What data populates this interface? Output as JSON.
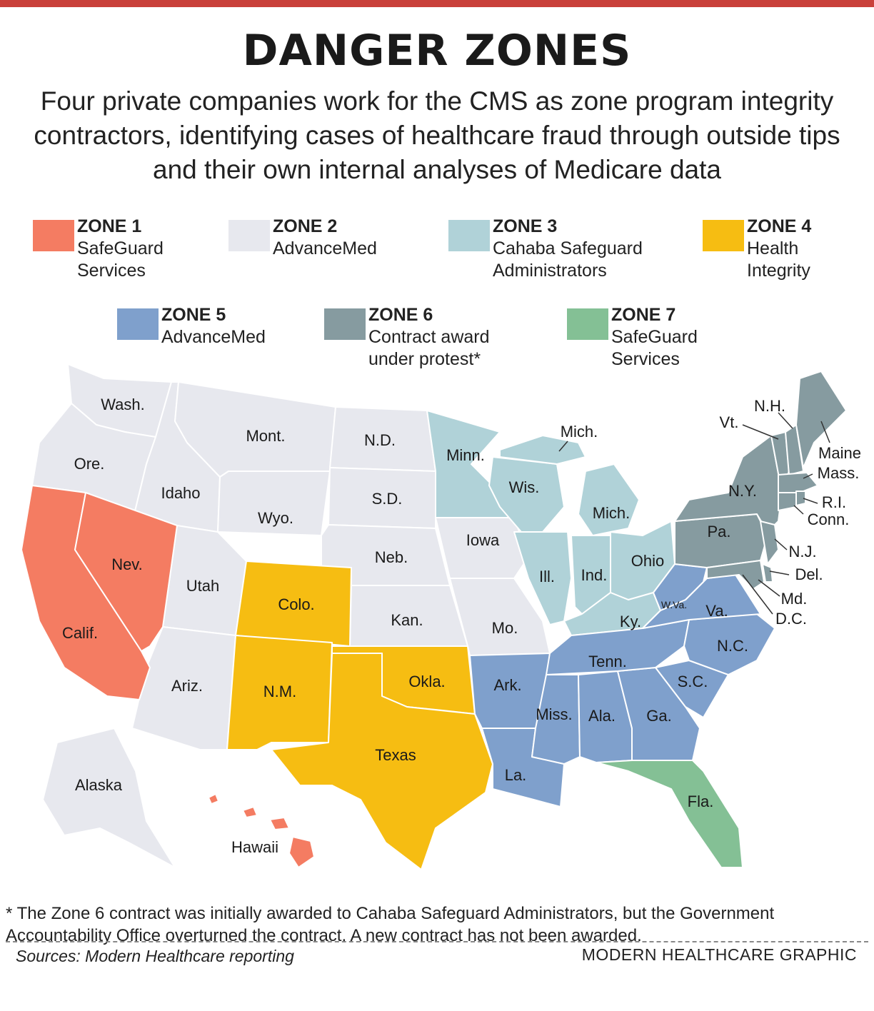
{
  "title": "DANGER ZONES",
  "subtitle": "Four private companies work for the CMS as zone program integrity contractors, identifying cases of healthcare fraud through outside tips and their own internal analyses of Medicare data",
  "legend": [
    {
      "name": "ZONE 1",
      "desc": "SafeGuard\nServices",
      "color": "#f47c62"
    },
    {
      "name": "ZONE 2",
      "desc": "AdvanceMed",
      "color": "#e7e8ee"
    },
    {
      "name": "ZONE 3",
      "desc": "Cahaba Safeguard\nAdministrators",
      "color": "#b0d2d8"
    },
    {
      "name": "ZONE 4",
      "desc": "Health\nIntegrity",
      "color": "#f6bd12"
    },
    {
      "name": "ZONE 5",
      "desc": "AdvanceMed",
      "color": "#7fa0cc"
    },
    {
      "name": "ZONE 6",
      "desc": "Contract award\nunder protest*",
      "color": "#869ba0"
    },
    {
      "name": "ZONE 7",
      "desc": "SafeGuard\nServices",
      "color": "#84c095"
    }
  ],
  "states": {
    "wash": "Wash.",
    "ore": "Ore.",
    "calif": "Calif.",
    "nev": "Nev.",
    "idaho": "Idaho",
    "mont": "Mont.",
    "wyo": "Wyo.",
    "utah": "Utah",
    "ariz": "Ariz.",
    "colo": "Colo.",
    "nm": "N.M.",
    "nd": "N.D.",
    "sd": "S.D.",
    "neb": "Neb.",
    "kan": "Kan.",
    "okla": "Okla.",
    "texas": "Texas",
    "minn": "Minn.",
    "iowa": "Iowa",
    "mo": "Mo.",
    "ark": "Ark.",
    "la": "La.",
    "wis": "Wis.",
    "ill": "Ill.",
    "mich_up": "Mich.",
    "mich": "Mich.",
    "ind": "Ind.",
    "ohio": "Ohio",
    "ky": "Ky.",
    "tenn": "Tenn.",
    "miss": "Miss.",
    "ala": "Ala.",
    "ga": "Ga.",
    "fla": "Fla.",
    "sc": "S.C.",
    "nc": "N.C.",
    "va": "Va.",
    "wva": "W.Va.",
    "pa": "Pa.",
    "ny": "N.Y.",
    "vt": "Vt.",
    "nh": "N.H.",
    "maine": "Maine",
    "mass": "Mass.",
    "ri": "R.I.",
    "conn": "Conn.",
    "nj": "N.J.",
    "del": "Del.",
    "md": "Md.",
    "dc": "D.C.",
    "alaska": "Alaska",
    "hawaii": "Hawaii"
  },
  "footnote": "* The Zone 6 contract was initially awarded to Cahaba Safeguard Administrators, but the Government Accountability Office overturned the contract. A new contract has not been awarded.",
  "sources": "Sources: Modern Healthcare reporting",
  "credit": "MODERN HEALTHCARE GRAPHIC"
}
